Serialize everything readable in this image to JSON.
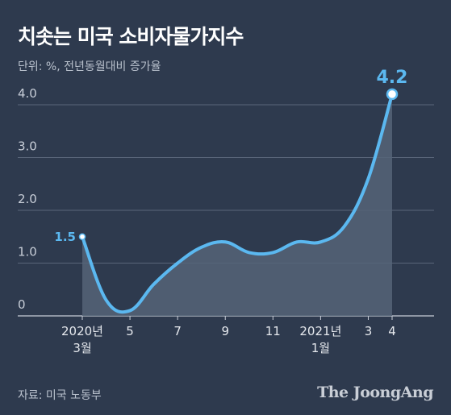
{
  "title": "치솟는 미국 소비자물가지수",
  "subtitle": "단위: %, 전년동월대비 증가율",
  "source": "자료: 미국 노동부",
  "brand": "The JoongAng",
  "colors": {
    "background": "#2e3a4e",
    "line": "#5bb8f0",
    "area": "#556478",
    "grid": "#5a667a"
  },
  "chart_data": {
    "type": "area",
    "title": "치솟는 미국 소비자물가지수",
    "ylabel": "",
    "xlabel": "",
    "ylim": [
      0,
      4.5
    ],
    "yticks": [
      "0",
      "1.0",
      "2.0",
      "3.0",
      "4.0"
    ],
    "grid": true,
    "x": [
      "2020-03",
      "2020-04",
      "2020-05",
      "2020-06",
      "2020-07",
      "2020-08",
      "2020-09",
      "2020-10",
      "2020-11",
      "2020-12",
      "2021-01",
      "2021-02",
      "2021-03",
      "2021-04"
    ],
    "series": [
      {
        "name": "",
        "values": [
          1.5,
          0.3,
          0.1,
          0.6,
          1.0,
          1.3,
          1.4,
          1.2,
          1.2,
          1.4,
          1.4,
          1.7,
          2.6,
          4.2
        ]
      }
    ],
    "xtick_labels": [
      {
        "label": "2020년",
        "sub": "3월"
      },
      {
        "label": "",
        "sub": ""
      },
      {
        "label": "5",
        "sub": ""
      },
      {
        "label": "",
        "sub": ""
      },
      {
        "label": "7",
        "sub": ""
      },
      {
        "label": "",
        "sub": ""
      },
      {
        "label": "9",
        "sub": ""
      },
      {
        "label": "",
        "sub": ""
      },
      {
        "label": "11",
        "sub": ""
      },
      {
        "label": "",
        "sub": ""
      },
      {
        "label": "2021년",
        "sub": "1월"
      },
      {
        "label": "",
        "sub": ""
      },
      {
        "label": "3",
        "sub": ""
      },
      {
        "label": "4",
        "sub": ""
      }
    ],
    "annotations": [
      {
        "label": "1.5",
        "index": 0
      },
      {
        "label": "4.2",
        "index": 13
      }
    ]
  }
}
